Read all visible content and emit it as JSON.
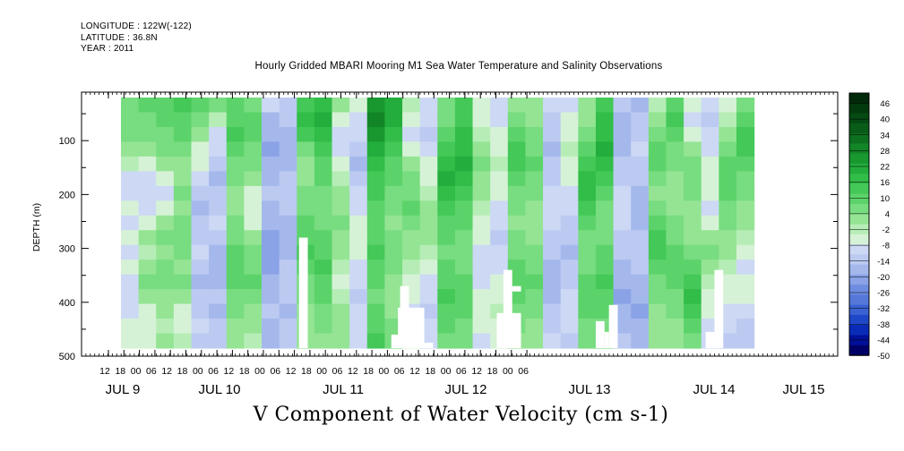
{
  "header": {
    "longitude": "LONGITUDE : 122W(-122)",
    "latitude": "LATITUDE : 36.8N",
    "year": "YEAR : 2011"
  },
  "chart_data": {
    "type": "heatmap",
    "title": "Hourly Gridded MBARI Mooring M1 Sea Water Temperature and Salinity Observations",
    "xlabel": "V Component of Water Velocity (cm s-1)",
    "ylabel": "DEPTH (m)",
    "y_ticks": [
      "100",
      "200",
      "300",
      "400",
      "500"
    ],
    "y_tick_values": [
      100,
      200,
      300,
      400,
      500
    ],
    "ylim": [
      500,
      10
    ],
    "data_depth_range": [
      20,
      485
    ],
    "x_range_hours": [
      0,
      144
    ],
    "x_start": "JUL 8 06:00",
    "hour_ticks": [
      "12",
      "18",
      "00",
      "06",
      "12",
      "18",
      "00",
      "06",
      "12",
      "18",
      "00",
      "06",
      "12",
      "18",
      "00",
      "06",
      "12",
      "18",
      "00",
      "06",
      "12",
      "18",
      "00",
      "06",
      "12",
      "18",
      "00",
      "06"
    ],
    "hour_tick_values": [
      6,
      12,
      18,
      24,
      30,
      36,
      42,
      48,
      54,
      60,
      66,
      72,
      78,
      84,
      90,
      96,
      102,
      108,
      114,
      120,
      126,
      132,
      138,
      144,
      150,
      156,
      162,
      168
    ],
    "day_labels": [
      "JUL  9",
      "JUL 10",
      "JUL 11",
      "JUL 12",
      "JUL 13",
      "JUL 14",
      "JUL 15"
    ],
    "day_label_hours": [
      18,
      42,
      66,
      90,
      114,
      138,
      162
    ],
    "colorbar_labels": [
      "46",
      "40",
      "34",
      "28",
      "22",
      "16",
      "10",
      "4",
      "-2",
      "-8",
      "-14",
      "-20",
      "-26",
      "-32",
      "-38",
      "-44",
      "-50"
    ],
    "colorbar_range": [
      -50,
      52
    ],
    "colorbar_step": 3,
    "colorbar_colors": [
      "#000066",
      "#001099",
      "#0a2bb8",
      "#1f48c8",
      "#3a62d2",
      "#5578d9",
      "#6e8ce0",
      "#8aa2e6",
      "#a4b8ec",
      "#bccaf1",
      "#ccd8f4",
      "#d6f2d6",
      "#b6edb6",
      "#94e494",
      "#78dc80",
      "#5cd36a",
      "#44c858",
      "#32bc48",
      "#22ad3c",
      "#18982f",
      "#128527",
      "#0c7020",
      "#085c18",
      "#054a12",
      "#033a0d",
      "#02290a"
    ],
    "series_blocks": [
      {
        "h0": 0,
        "h1": 8,
        "cols": [
          [
            6,
            6,
            8,
            4,
            -2,
            -8,
            -8,
            -6,
            -10,
            -4,
            -8,
            -6,
            -8,
            -8,
            -10,
            -6,
            -6
          ],
          [
            10,
            8,
            6,
            2,
            -4,
            -10,
            -8,
            -8,
            -6,
            2,
            -2,
            4,
            6,
            2,
            -4,
            -6,
            -4
          ]
        ]
      },
      {
        "h0": 8,
        "h1": 16,
        "cols": [
          [
            12,
            10,
            8,
            6,
            2,
            -6,
            -8,
            -4,
            2,
            6,
            4,
            6,
            8,
            4,
            2,
            -2,
            4
          ],
          [
            14,
            12,
            10,
            8,
            4,
            4,
            6,
            2,
            6,
            8,
            6,
            4,
            6,
            2,
            -4,
            -6,
            -2
          ]
        ]
      },
      {
        "h0": 16,
        "h1": 24,
        "cols": [
          [
            10,
            8,
            4,
            -4,
            -6,
            -8,
            -12,
            -16,
            -14,
            -12,
            -10,
            -14,
            -16,
            -14,
            -12,
            -10,
            -14
          ],
          [
            6,
            -2,
            -8,
            -10,
            -14,
            -16,
            -14,
            -12,
            -10,
            -14,
            -16,
            -18,
            -16,
            -14,
            -16,
            -14,
            -12
          ]
        ]
      },
      {
        "h0": 24,
        "h1": 32,
        "cols": [
          [
            10,
            12,
            14,
            10,
            8,
            6,
            4,
            2,
            6,
            8,
            10,
            12,
            10,
            8,
            6,
            4,
            2
          ],
          [
            8,
            10,
            12,
            8,
            6,
            2,
            -4,
            -6,
            -4,
            2,
            6,
            8,
            10,
            8,
            4,
            2,
            -2
          ]
        ]
      },
      {
        "h0": 32,
        "h1": 40,
        "cols": [
          [
            -10,
            -16,
            -18,
            -20,
            -18,
            -16,
            -14,
            -16,
            -18,
            -20,
            -22,
            -20,
            -18,
            -16,
            -14,
            -16,
            -18
          ],
          [
            -12,
            -14,
            -16,
            -18,
            -16,
            -14,
            -12,
            -14,
            -16,
            -18,
            -16,
            -14,
            -12,
            -14,
            -16,
            -14,
            -12
          ]
        ]
      },
      {
        "h0": 40,
        "h1": 48,
        "cols": [
          [
            16,
            18,
            14,
            8,
            4,
            2,
            6,
            8,
            10,
            12,
            14,
            10,
            8,
            6,
            4,
            2,
            4
          ],
          [
            20,
            22,
            18,
            16,
            12,
            10,
            8,
            6,
            8,
            10,
            12,
            14,
            12,
            10,
            8,
            6,
            4
          ]
        ]
      },
      {
        "h0": 48,
        "h1": 56,
        "cols": [
          [
            2,
            -4,
            -8,
            -10,
            -6,
            -2,
            2,
            4,
            6,
            4,
            2,
            -2,
            -4,
            -2,
            2,
            4,
            2
          ],
          [
            -4,
            -8,
            -10,
            -14,
            -16,
            -12,
            -10,
            -8,
            -6,
            -4,
            -6,
            -8,
            -10,
            -12,
            -10,
            -8,
            -10
          ]
        ]
      },
      {
        "h0": 56,
        "h1": 64,
        "cols": [
          [
            28,
            30,
            26,
            22,
            18,
            16,
            14,
            12,
            10,
            12,
            14,
            12,
            10,
            8,
            10,
            12,
            14
          ],
          [
            22,
            24,
            20,
            16,
            12,
            10,
            8,
            6,
            4,
            6,
            8,
            6,
            4,
            2,
            4,
            6,
            8
          ]
        ]
      },
      {
        "h0": 64,
        "h1": 72,
        "cols": [
          [
            -2,
            -6,
            -8,
            -4,
            2,
            6,
            8,
            10,
            8,
            4,
            2,
            -2,
            -4,
            -6,
            -8,
            -6,
            -4
          ],
          [
            -8,
            -10,
            -12,
            -10,
            -6,
            -4,
            -2,
            2,
            4,
            2,
            -2,
            -6,
            -8,
            -10,
            -12,
            -10,
            -8
          ]
        ]
      },
      {
        "h0": 72,
        "h1": 80,
        "cols": [
          [
            6,
            8,
            10,
            14,
            18,
            22,
            20,
            16,
            12,
            10,
            8,
            10,
            12,
            14,
            12,
            10,
            8
          ],
          [
            14,
            16,
            18,
            20,
            22,
            20,
            16,
            12,
            10,
            8,
            6,
            8,
            10,
            12,
            10,
            8,
            6
          ]
        ]
      },
      {
        "h0": 80,
        "h1": 88,
        "cols": [
          [
            -6,
            -4,
            -2,
            4,
            6,
            4,
            2,
            -2,
            -4,
            -6,
            -8,
            -10,
            -8,
            -6,
            -4,
            -6,
            -8
          ],
          [
            -10,
            -8,
            -6,
            -4,
            -2,
            -4,
            -6,
            -8,
            -10,
            -12,
            -10,
            -8,
            -6,
            -4,
            -2,
            -4,
            -6
          ]
        ]
      },
      {
        "h0": 88,
        "h1": 96,
        "cols": [
          [
            4,
            6,
            10,
            14,
            16,
            12,
            8,
            6,
            4,
            6,
            8,
            10,
            12,
            10,
            8,
            6,
            4
          ],
          [
            2,
            4,
            6,
            8,
            10,
            8,
            6,
            4,
            2,
            4,
            6,
            8,
            10,
            8,
            6,
            4,
            2
          ]
        ]
      },
      {
        "h0": 96,
        "h1": 104,
        "cols": [
          [
            -10,
            -12,
            -14,
            -16,
            -14,
            -12,
            -10,
            -8,
            -10,
            -12,
            -14,
            -16,
            -18,
            -16,
            -14,
            -12,
            -10
          ],
          [
            -8,
            -6,
            -4,
            -2,
            -4,
            -6,
            -8,
            -10,
            -12,
            -14,
            -16,
            -14,
            -12,
            -10,
            -8,
            -10,
            -12
          ]
        ]
      },
      {
        "h0": 104,
        "h1": 112,
        "cols": [
          [
            4,
            2,
            6,
            10,
            16,
            20,
            18,
            14,
            10,
            8,
            6,
            8,
            10,
            12,
            10,
            8,
            6
          ],
          [
            16,
            18,
            20,
            22,
            18,
            14,
            10,
            8,
            6,
            8,
            10,
            12,
            14,
            12,
            10,
            8,
            6
          ]
        ]
      },
      {
        "h0": 112,
        "h1": 120,
        "cols": [
          [
            -14,
            -16,
            -18,
            -16,
            -14,
            -12,
            -10,
            -8,
            -10,
            -12,
            -14,
            -16,
            -18,
            -20,
            -18,
            -16,
            -14
          ],
          [
            -16,
            -14,
            -12,
            -10,
            -12,
            -14,
            -16,
            -18,
            -16,
            -14,
            -12,
            -14,
            -16,
            -18,
            -20,
            -18,
            -16
          ]
        ]
      },
      {
        "h0": 120,
        "h1": 128,
        "cols": [
          [
            -2,
            4,
            8,
            12,
            10,
            6,
            4,
            8,
            12,
            16,
            14,
            10,
            8,
            6,
            4,
            2,
            4
          ],
          [
            10,
            14,
            12,
            8,
            6,
            4,
            2,
            4,
            6,
            8,
            10,
            12,
            10,
            8,
            6,
            4,
            2
          ]
        ]
      },
      {
        "h0": 128,
        "h1": 136,
        "cols": [
          [
            -6,
            -8,
            -4,
            2,
            6,
            8,
            6,
            4,
            2,
            4,
            8,
            12,
            16,
            18,
            14,
            10,
            8
          ],
          [
            -10,
            -12,
            -10,
            -8,
            -6,
            -4,
            -6,
            -8,
            -4,
            2,
            6,
            4,
            -2,
            -4,
            -6,
            -8,
            -10
          ]
        ]
      },
      {
        "h0": 136,
        "h1": 144,
        "cols": [
          [
            -4,
            -2,
            2,
            6,
            10,
            12,
            10,
            8,
            6,
            4,
            2,
            -2,
            -4,
            -6,
            -8,
            -10,
            -12
          ],
          [
            8,
            12,
            16,
            14,
            10,
            8,
            6,
            4,
            2,
            -2,
            -6,
            -8,
            -6,
            -4,
            -8,
            -12,
            -14
          ]
        ]
      }
    ],
    "gaps": [
      {
        "h0": 40.5,
        "h1": 42.5,
        "d0": 280,
        "d1": 485
      },
      {
        "h0": 63.5,
        "h1": 65.5,
        "d0": 370,
        "d1": 485
      },
      {
        "h0": 63.0,
        "h1": 69.0,
        "d0": 410,
        "d1": 485
      },
      {
        "h0": 61.5,
        "h1": 63.5,
        "d0": 460,
        "d1": 485
      },
      {
        "h0": 69.0,
        "h1": 71.0,
        "d0": 475,
        "d1": 485
      },
      {
        "h0": 87.0,
        "h1": 89.0,
        "d0": 340,
        "d1": 485
      },
      {
        "h0": 85.5,
        "h1": 91.0,
        "d0": 420,
        "d1": 485
      },
      {
        "h0": 89.0,
        "h1": 91.0,
        "d0": 370,
        "d1": 380
      },
      {
        "h0": 108.0,
        "h1": 110.0,
        "d0": 435,
        "d1": 485
      },
      {
        "h0": 111.0,
        "h1": 113.0,
        "d0": 405,
        "d1": 485
      },
      {
        "h0": 110.0,
        "h1": 111.0,
        "d0": 455,
        "d1": 485
      },
      {
        "h0": 133.0,
        "h1": 135.0,
        "d0": 455,
        "d1": 485
      },
      {
        "h0": 135.0,
        "h1": 137.0,
        "d0": 340,
        "d1": 485
      }
    ]
  }
}
